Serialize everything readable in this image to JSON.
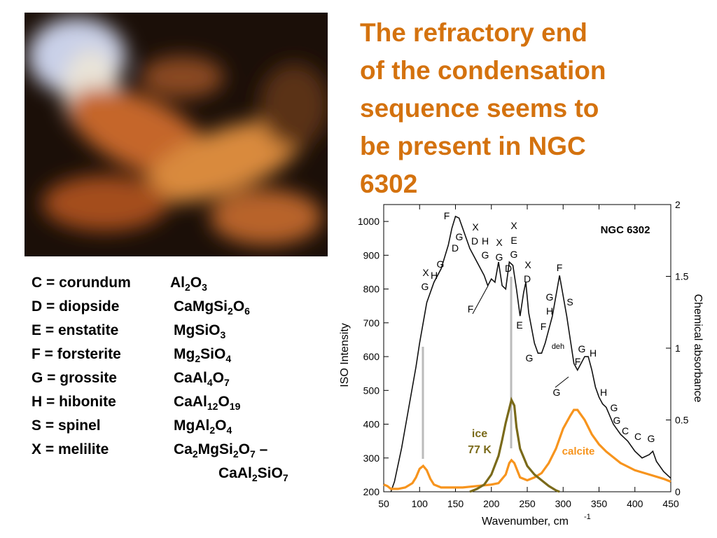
{
  "title_lines": [
    "The refractory end",
    "of the condensation",
    "sequence seems to",
    "be present in NGC",
    "6302"
  ],
  "minerals": [
    {
      "label": "C = corundum",
      "formula": "Al2O3"
    },
    {
      "label": "D = diopside",
      "formula": "CaMgSi2O6"
    },
    {
      "label": "E = enstatite",
      "formula": "MgSiO3"
    },
    {
      "label": "F = forsterite",
      "formula": "Mg2SiO4"
    },
    {
      "label": "G = grossite",
      "formula": "CaAl4O7"
    },
    {
      "label": "H = hibonite",
      "formula": "CaAl12O19"
    },
    {
      "label": "S = spinel",
      "formula": "MgAl2O4"
    },
    {
      "label": "X = melilite",
      "formula": "Ca2MgSi2O7 –",
      "formula_cont": "CaAl2SiO7"
    }
  ],
  "chart_data": {
    "type": "line",
    "x_label": "Wavenumber, cm",
    "x_label_sup": "-1",
    "y_label": "ISO Intensity",
    "y2_label": "Chemical absorbance",
    "xlim": [
      50,
      450
    ],
    "xticks": [
      50,
      100,
      150,
      200,
      250,
      300,
      350,
      400,
      450
    ],
    "ylim": [
      200,
      1050
    ],
    "yticks": [
      200,
      300,
      400,
      500,
      600,
      700,
      800,
      900,
      1000
    ],
    "y2lim": [
      0,
      2
    ],
    "y2ticks": [
      0,
      0.5,
      1,
      1.5,
      2
    ],
    "series": [
      {
        "name": "NGC 6302",
        "color": "#111111",
        "axis": "y",
        "x": [
          60,
          65,
          75,
          85,
          95,
          100,
          105,
          110,
          120,
          130,
          140,
          145,
          150,
          155,
          160,
          170,
          180,
          190,
          195,
          200,
          205,
          210,
          215,
          220,
          225,
          230,
          235,
          240,
          245,
          248,
          252,
          260,
          265,
          270,
          275,
          280,
          285,
          290,
          295,
          300,
          305,
          310,
          315,
          320,
          325,
          330,
          335,
          340,
          345,
          350,
          355,
          360,
          370,
          380,
          390,
          400,
          410,
          420,
          425,
          430,
          440,
          450
        ],
        "values": [
          200,
          230,
          330,
          450,
          570,
          640,
          700,
          760,
          820,
          860,
          930,
          980,
          1015,
          1010,
          980,
          920,
          880,
          840,
          810,
          830,
          820,
          880,
          810,
          800,
          880,
          870,
          800,
          720,
          790,
          820,
          730,
          640,
          610,
          610,
          640,
          680,
          720,
          780,
          840,
          780,
          720,
          650,
          580,
          560,
          580,
          600,
          600,
          560,
          510,
          480,
          460,
          450,
          400,
          370,
          350,
          320,
          300,
          310,
          320,
          290,
          260,
          240
        ]
      },
      {
        "name": "calcite",
        "color": "#f7941d",
        "axis": "y2",
        "x": [
          50,
          55,
          60,
          70,
          80,
          90,
          95,
          100,
          105,
          110,
          115,
          120,
          130,
          140,
          160,
          180,
          200,
          210,
          220,
          225,
          228,
          232,
          240,
          250,
          260,
          270,
          280,
          290,
          300,
          310,
          315,
          320,
          330,
          340,
          350,
          360,
          380,
          400,
          420,
          440,
          450
        ],
        "values": [
          0.05,
          0.04,
          0.02,
          0.02,
          0.03,
          0.06,
          0.1,
          0.16,
          0.18,
          0.15,
          0.09,
          0.05,
          0.03,
          0.03,
          0.03,
          0.04,
          0.05,
          0.06,
          0.12,
          0.2,
          0.22,
          0.2,
          0.1,
          0.08,
          0.1,
          0.13,
          0.2,
          0.3,
          0.44,
          0.53,
          0.57,
          0.57,
          0.5,
          0.4,
          0.33,
          0.28,
          0.2,
          0.15,
          0.12,
          0.09,
          0.07
        ]
      },
      {
        "name": "ice",
        "name2": "77 K",
        "color": "#7a6a1a",
        "axis": "y2",
        "x": [
          170,
          180,
          190,
          200,
          210,
          215,
          220,
          225,
          228,
          232,
          235,
          240,
          250,
          260,
          270,
          280,
          290,
          295
        ],
        "values": [
          0,
          0.02,
          0.05,
          0.12,
          0.25,
          0.36,
          0.48,
          0.58,
          0.64,
          0.6,
          0.45,
          0.3,
          0.18,
          0.12,
          0.08,
          0.04,
          0.01,
          0
        ]
      }
    ],
    "annotations": [
      "F",
      "G",
      "D",
      "X",
      "D",
      "H",
      "G",
      "X",
      "G",
      "G",
      "X",
      "H",
      "G",
      "F",
      "X",
      "E",
      "G",
      "D",
      "X",
      "D",
      "F",
      "G",
      "S",
      "H",
      "F",
      "E",
      "deh",
      "G",
      "G",
      "H",
      "F",
      "G",
      "H",
      "G",
      "G",
      "C",
      "C",
      "G"
    ]
  }
}
